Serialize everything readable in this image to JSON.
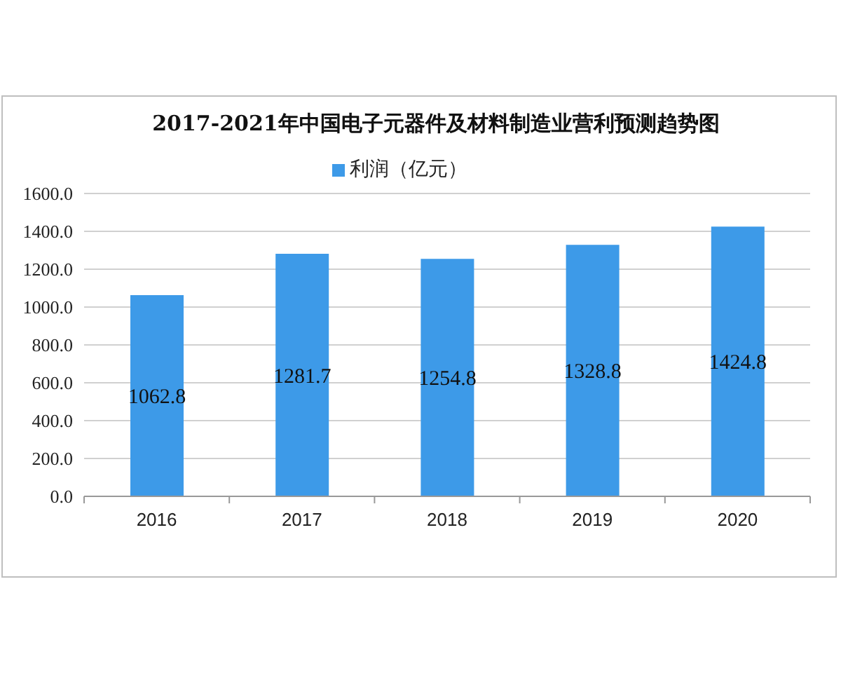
{
  "chart_data": {
    "type": "bar",
    "title": "2017-2021年中国电子元器件及材料制造业营利预测趋势图",
    "categories": [
      "2016",
      "2017",
      "2018",
      "2019",
      "2020"
    ],
    "series": [
      {
        "name": "利润（亿元）",
        "color": "#3d9ae8",
        "values": [
          1062.8,
          1281.7,
          1254.8,
          1328.8,
          1424.8
        ]
      }
    ],
    "ylim": [
      0,
      1600
    ],
    "yticks": [
      {
        "value": 0,
        "label": "0.0"
      },
      {
        "value": 200,
        "label": "200.0"
      },
      {
        "value": 400,
        "label": "400.0"
      },
      {
        "value": 600,
        "label": "600.0"
      },
      {
        "value": 800,
        "label": "800.0"
      },
      {
        "value": 1000,
        "label": "1000.0"
      },
      {
        "value": 1200,
        "label": "1200.0"
      },
      {
        "value": 1400,
        "label": "1400.0"
      },
      {
        "value": 1600,
        "label": "1600.0"
      }
    ],
    "grid": "y",
    "legend": "top",
    "data_labels": true
  }
}
